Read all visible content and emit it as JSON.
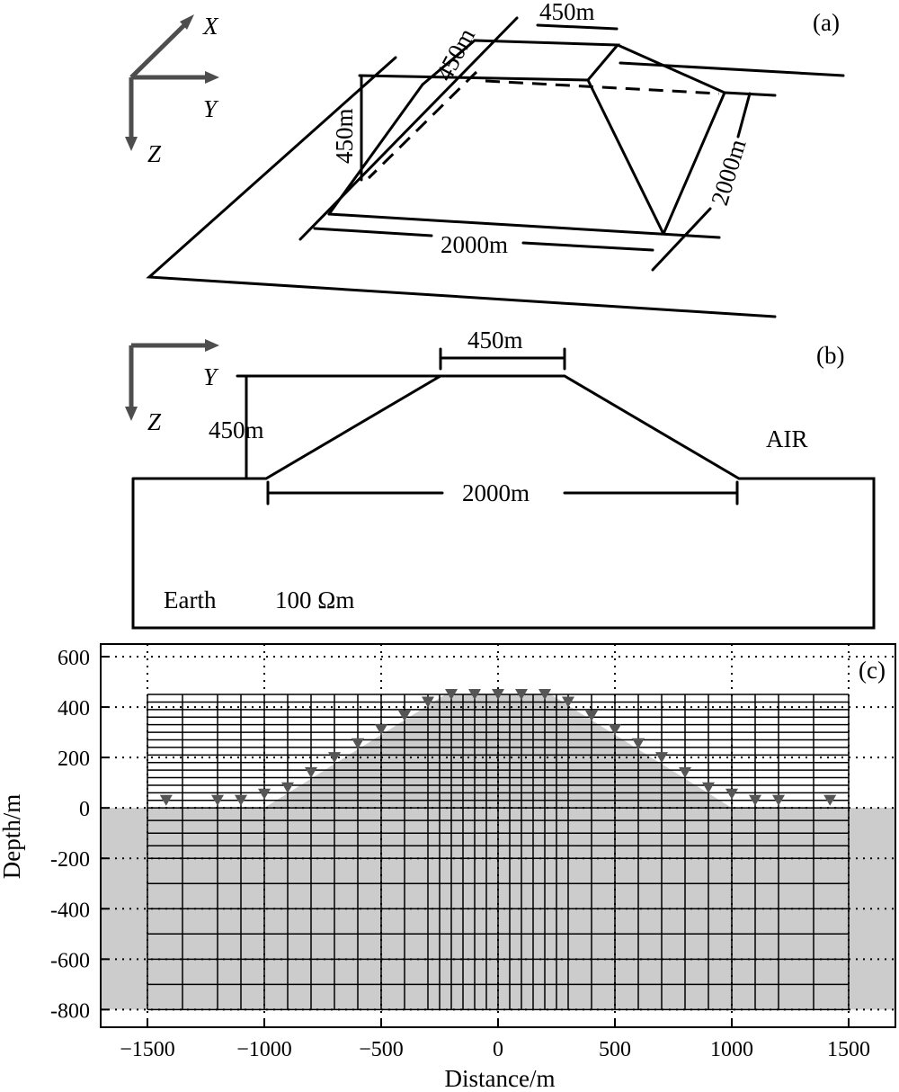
{
  "panel_a": {
    "label": "(a)",
    "axes": {
      "x": "X",
      "y": "Y",
      "z": "Z"
    },
    "dims": {
      "top_width": "450m",
      "top_depth": "450m",
      "height": "450m",
      "base_length": "2000m",
      "base_width": "2000m"
    }
  },
  "panel_b": {
    "label": "(b)",
    "axes": {
      "y": "Y",
      "z": "Z"
    },
    "dims": {
      "top_width": "450m",
      "height": "450m",
      "base_width": "2000m"
    },
    "air_label": "AIR",
    "earth_label": "Earth",
    "resistivity": "100 Ωm"
  },
  "panel_c": {
    "label": "(c)",
    "xlabel": "Distance/m",
    "ylabel": "Depth/m"
  },
  "chart_data": {
    "type": "scatter",
    "title": "",
    "xlabel": "Distance/m",
    "ylabel": "Depth/m",
    "xlim": [
      -1700,
      1700
    ],
    "ylim": [
      -870,
      650
    ],
    "xticks": [
      -1500,
      -1000,
      -500,
      0,
      500,
      1000,
      1500
    ],
    "yticks": [
      600,
      400,
      200,
      0,
      -200,
      -400,
      -600,
      -800
    ],
    "xtick_labels": [
      "−1500",
      "−1000",
      "−500",
      "0",
      "500",
      "1000",
      "1500"
    ],
    "ytick_labels": [
      "600",
      "400",
      "200",
      "0",
      "-200",
      "-400",
      "-600",
      "-800"
    ],
    "grid": "dotted",
    "receivers": {
      "x": [
        -1420,
        -1200,
        -1100,
        -1000,
        -900,
        -800,
        -700,
        -600,
        -500,
        -400,
        -300,
        -200,
        -100,
        0,
        100,
        200,
        300,
        400,
        500,
        600,
        700,
        800,
        900,
        1000,
        1100,
        1200,
        1420
      ],
      "y": [
        30,
        30,
        30,
        55,
        80,
        140,
        200,
        255,
        310,
        365,
        420,
        450,
        450,
        450,
        450,
        450,
        420,
        365,
        310,
        255,
        200,
        140,
        80,
        55,
        30,
        30,
        30
      ]
    },
    "topography": {
      "x": [
        -1700,
        -1000,
        -225,
        225,
        1000,
        1700
      ],
      "y": [
        0,
        0,
        450,
        450,
        0,
        0
      ]
    },
    "mesh_x": [
      -1500,
      -1350,
      -1200,
      -1100,
      -1000,
      -900,
      -800,
      -700,
      -600,
      -500,
      -400,
      -300,
      -250,
      -200,
      -150,
      -100,
      -50,
      0,
      50,
      100,
      150,
      200,
      250,
      300,
      400,
      500,
      600,
      700,
      800,
      900,
      1000,
      1100,
      1200,
      1350,
      1500
    ],
    "mesh_y": [
      450,
      420,
      390,
      360,
      330,
      300,
      270,
      240,
      210,
      180,
      150,
      120,
      90,
      60,
      30,
      0,
      -50,
      -100,
      -150,
      -200,
      -300,
      -400,
      -500,
      -600,
      -700,
      -800
    ]
  }
}
